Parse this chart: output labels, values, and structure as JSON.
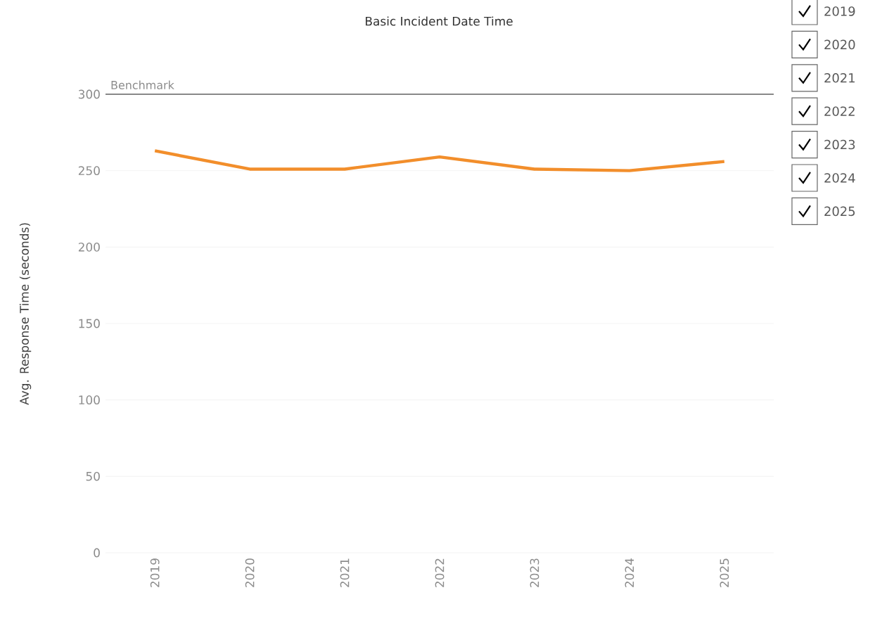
{
  "chart_data": {
    "type": "line",
    "title": "Basic Incident Date Time",
    "ylabel": "Avg. Response Time (seconds)",
    "categories": [
      "2019",
      "2020",
      "2021",
      "2022",
      "2023",
      "2024",
      "2025"
    ],
    "series": [
      {
        "color": "#f28e2b",
        "values": [
          263,
          251,
          251,
          259,
          251,
          250,
          256
        ]
      }
    ],
    "ylim": [
      0,
      300
    ],
    "yticks": [
      0,
      50,
      100,
      150,
      200,
      250,
      300
    ],
    "grid": "y",
    "marker": "none",
    "line_style": "solid",
    "ref_lines": [
      {
        "axis": "y",
        "value": 300,
        "label": "Benchmark",
        "color": "#888888"
      }
    ],
    "annotations": [
      "2019",
      "2020",
      "2021",
      "2022",
      "2023",
      "2024",
      "2025"
    ]
  }
}
